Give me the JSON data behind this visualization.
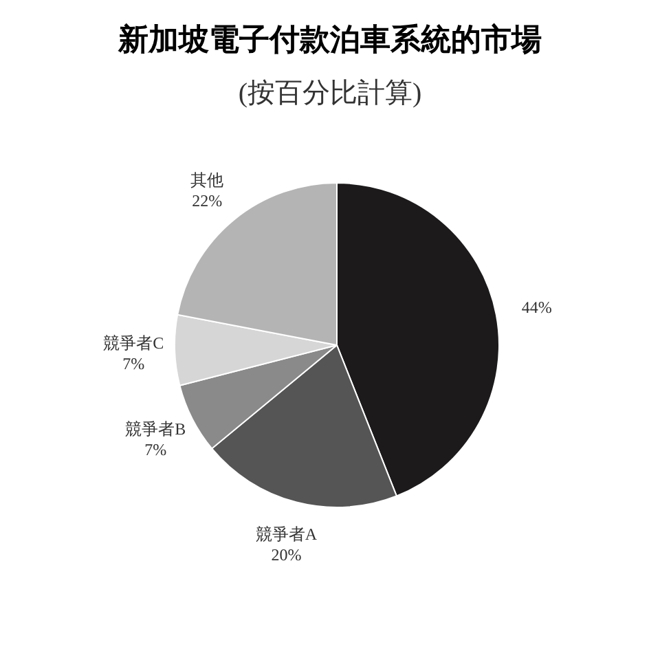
{
  "chart_data": {
    "type": "pie",
    "title": "新加坡電子付款泊車系統的市場",
    "subtitle": "(按百分比計算)",
    "categories": [
      null,
      "競爭者A",
      "競爭者B",
      "競爭者C",
      "其他"
    ],
    "values": [
      44,
      20,
      7,
      7,
      22
    ],
    "value_labels": [
      "44%",
      "20%",
      "7%",
      "7%",
      "22%"
    ],
    "colors": [
      "#1c1a1a",
      "#555555",
      "#8a8a8a",
      "#d6d6d6",
      "#b4b4b4"
    ],
    "legend": false
  }
}
